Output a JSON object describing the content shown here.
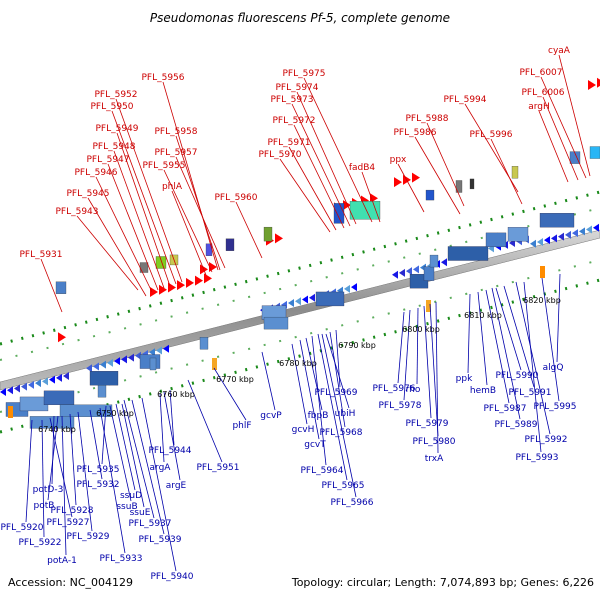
{
  "title": "Pseudomonas fluorescens Pf-5, complete genome",
  "accession": "Accession: NC_004129",
  "summary": "Topology: circular; Length: 7,074,893 bp; Genes: 6,226",
  "colors": {
    "top_label": "#cc0000",
    "bottom_label": "#0000aa",
    "backbone": "#999999",
    "tick": "#1a8a1a"
  },
  "kbp_labels": [
    "6740 kbp",
    "6750 kbp",
    "6760 kbp",
    "6770 kbp",
    "6780 kbp",
    "6790 kbp",
    "6800 kbp",
    "6810 kbp",
    "6820 kbp"
  ],
  "top_genes": [
    "PFL_5931",
    "PFL_5943",
    "PFL_5945",
    "PFL_5946",
    "PFL_5947",
    "PFL_5948",
    "PFL_5949",
    "PFL_5950",
    "PFL_5952",
    "PFL_5956",
    "PFL_5958",
    "PFL_5957",
    "PFL_5955",
    "phlA",
    "PFL_5960",
    "PFL_5970",
    "PFL_5971",
    "PFL_5972",
    "PFL_5973",
    "PFL_5974",
    "PFL_5975",
    "fadB4",
    "ppx",
    "PFL_5986",
    "PFL_5988",
    "PFL_5994",
    "PFL_5996",
    "argH",
    "PFL_6006",
    "PFL_6007",
    "cyaA"
  ],
  "bottom_genes": [
    "PFL_5920",
    "PFL_5922",
    "PFL_5927",
    "potA-1",
    "potB",
    "potD-3",
    "PFL_5928",
    "PFL_5929",
    "PFL_5932",
    "PFL_5933",
    "PFL_5935",
    "ssuB",
    "ssuD",
    "ssuE",
    "PFL_5937",
    "PFL_5939",
    "PFL_5940",
    "argA",
    "argE",
    "PFL_5944",
    "PFL_5951",
    "phlF",
    "gcvP",
    "gcvH",
    "gcvT",
    "fbpB",
    "PFL_5964",
    "PFL_5965",
    "PFL_5966",
    "ubiH",
    "PFL_5968",
    "PFL_5969",
    "PFL_5976",
    "PFL_5978",
    "rho",
    "PFL_5979",
    "PFL_5980",
    "trxA",
    "ppk",
    "hemB",
    "PFL_5987",
    "PFL_5989",
    "PFL_5990",
    "PFL_5991",
    "PFL_5992",
    "PFL_5993",
    "PFL_5995",
    "algQ"
  ]
}
